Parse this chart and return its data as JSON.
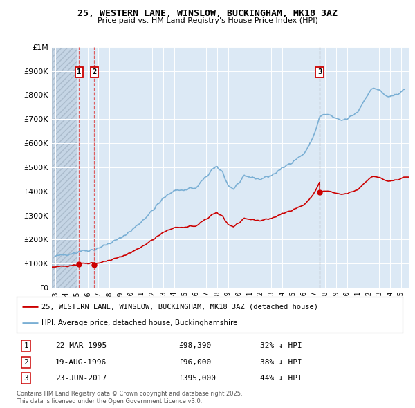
{
  "title": "25, WESTERN LANE, WINSLOW, BUCKINGHAM, MK18 3AZ",
  "subtitle": "Price paid vs. HM Land Registry's House Price Index (HPI)",
  "background_color": "#ffffff",
  "plot_bg_color": "#dce9f5",
  "hatch_area_color": "#c8d8e8",
  "grid_color": "#ffffff",
  "ylim": [
    0,
    1000000
  ],
  "yticks": [
    0,
    100000,
    200000,
    300000,
    400000,
    500000,
    600000,
    700000,
    800000,
    900000,
    1000000
  ],
  "ytick_labels": [
    "£0",
    "£100K",
    "£200K",
    "£300K",
    "£400K",
    "£500K",
    "£600K",
    "£700K",
    "£800K",
    "£900K",
    "£1M"
  ],
  "xlim_start": 1992.7,
  "xlim_end": 2025.8,
  "hpi_monthly_start_year": 1993.0,
  "transactions": [
    {
      "num": 1,
      "date": "22-MAR-1995",
      "price": "£98,390",
      "hpi_diff": "32% ↓ HPI",
      "year": 1995.22,
      "value": 98390
    },
    {
      "num": 2,
      "date": "19-AUG-1996",
      "price": "£96,000",
      "hpi_diff": "38% ↓ HPI",
      "year": 1996.63,
      "value": 96000
    },
    {
      "num": 3,
      "date": "23-JUN-2017",
      "price": "£395,000",
      "hpi_diff": "44% ↓ HPI",
      "year": 2017.48,
      "value": 395000
    }
  ],
  "red_line_color": "#cc0000",
  "blue_line_color": "#7aafd4",
  "marker_box_color": "#cc0000",
  "vline1_color": "#dd4444",
  "vline3_color": "#888888",
  "legend_label_red": "25, WESTERN LANE, WINSLOW, BUCKINGHAM, MK18 3AZ (detached house)",
  "legend_label_blue": "HPI: Average price, detached house, Buckinghamshire",
  "footer_text": "Contains HM Land Registry data © Crown copyright and database right 2025.\nThis data is licensed under the Open Government Licence v3.0.",
  "xtick_years": [
    1993,
    1994,
    1995,
    1996,
    1997,
    1998,
    1999,
    2000,
    2001,
    2002,
    2003,
    2004,
    2005,
    2006,
    2007,
    2008,
    2009,
    2010,
    2011,
    2012,
    2013,
    2014,
    2015,
    2016,
    2017,
    2018,
    2019,
    2020,
    2021,
    2022,
    2023,
    2024,
    2025
  ]
}
